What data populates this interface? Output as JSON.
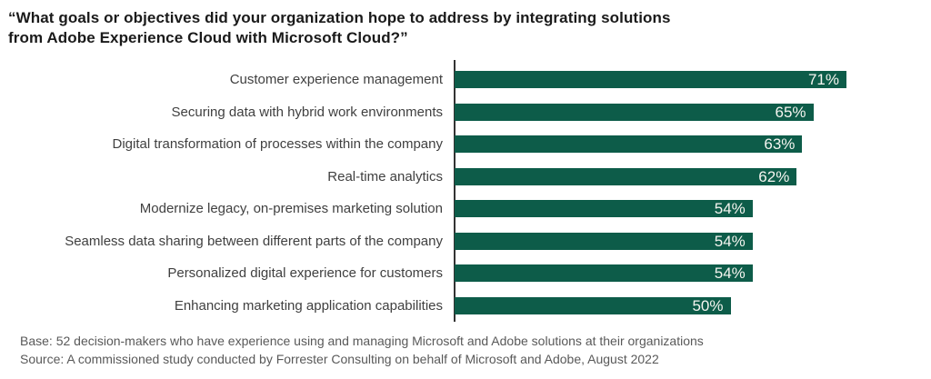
{
  "title": "“What goals or objectives did your organization hope to address by integrating solutions\nfrom Adobe Experience Cloud with Microsoft Cloud?”",
  "chart_data": {
    "type": "bar",
    "orientation": "horizontal",
    "title": "“What goals or objectives did your organization hope to address by integrating solutions from Adobe Experience Cloud with Microsoft Cloud?”",
    "categories": [
      "Customer experience management",
      "Securing data with hybrid work environments",
      "Digital transformation of processes within the company",
      "Real-time analytics",
      "Modernize legacy, on-premises marketing solution",
      "Seamless data sharing between different parts of the company",
      "Personalized digital experience for customers",
      "Enhancing marketing application capabilities"
    ],
    "values": [
      71,
      65,
      63,
      62,
      54,
      54,
      54,
      50
    ],
    "value_labels": [
      "71%",
      "65%",
      "63%",
      "62%",
      "54%",
      "54%",
      "54%",
      "50%"
    ],
    "xlabel": "",
    "ylabel": "",
    "grid": false,
    "legend": false,
    "value_labels_position": "inside-end",
    "colors": {
      "bar": "#0d5c49",
      "value_label": "#f5f5f0",
      "category_label": "#404040",
      "axis_line": "#333333",
      "title": "#1a1a1a",
      "footer": "#595959",
      "background": "#ffffff"
    }
  },
  "footer": {
    "base": "Base: 52 decision-makers who have experience using and managing  Microsoft and Adobe solutions  at their organizations",
    "source": "Source: A commissioned  study conducted  by Forrester Consulting  on behalf of Microsoft and Adobe,  August 2022"
  }
}
